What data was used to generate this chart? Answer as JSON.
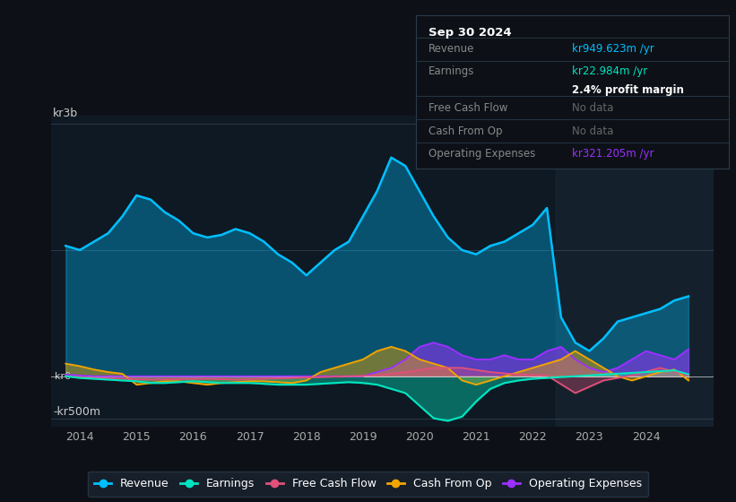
{
  "bg_color": "#0d1117",
  "plot_bg_color": "#0f1923",
  "grid_color": "#1e2d3d",
  "y_label_top": "kr3b",
  "y_label_mid": "kr0",
  "y_label_bot": "-kr500m",
  "x_ticks": [
    2014,
    2015,
    2016,
    2017,
    2018,
    2019,
    2020,
    2021,
    2022,
    2023,
    2024
  ],
  "ylim": [
    -600,
    3100
  ],
  "xlim": [
    2013.5,
    2025.2
  ],
  "colors": {
    "revenue": "#00bfff",
    "earnings": "#00e5c0",
    "free_cash_flow": "#e0507a",
    "cash_from_op": "#f0a500",
    "operating_expenses": "#9b30ff"
  },
  "legend_items": [
    "Revenue",
    "Earnings",
    "Free Cash Flow",
    "Cash From Op",
    "Operating Expenses"
  ],
  "info_box": {
    "date": "Sep 30 2024",
    "revenue_label": "Revenue",
    "revenue_value": "kr949.623m /yr",
    "earnings_label": "Earnings",
    "earnings_value": "kr22.984m /yr",
    "profit_margin": "2.4% profit margin",
    "free_cash_flow_label": "Free Cash Flow",
    "free_cash_flow_value": "No data",
    "cash_from_op_label": "Cash From Op",
    "cash_from_op_value": "No data",
    "op_expenses_label": "Operating Expenses",
    "op_expenses_value": "kr321.205m /yr"
  },
  "revenue": {
    "x": [
      2013.75,
      2014.0,
      2014.25,
      2014.5,
      2014.75,
      2015.0,
      2015.25,
      2015.5,
      2015.75,
      2016.0,
      2016.25,
      2016.5,
      2016.75,
      2017.0,
      2017.25,
      2017.5,
      2017.75,
      2018.0,
      2018.25,
      2018.5,
      2018.75,
      2019.0,
      2019.25,
      2019.5,
      2019.75,
      2020.0,
      2020.25,
      2020.5,
      2020.75,
      2021.0,
      2021.25,
      2021.5,
      2021.75,
      2022.0,
      2022.25,
      2022.5,
      2022.75,
      2023.0,
      2023.25,
      2023.5,
      2023.75,
      2024.0,
      2024.25,
      2024.5,
      2024.75
    ],
    "y": [
      1550,
      1500,
      1600,
      1700,
      1900,
      2150,
      2100,
      1950,
      1850,
      1700,
      1650,
      1680,
      1750,
      1700,
      1600,
      1450,
      1350,
      1200,
      1350,
      1500,
      1600,
      1900,
      2200,
      2600,
      2500,
      2200,
      1900,
      1650,
      1500,
      1450,
      1550,
      1600,
      1700,
      1800,
      2000,
      700,
      400,
      300,
      450,
      650,
      700,
      750,
      800,
      900,
      950
    ]
  },
  "earnings": {
    "x": [
      2013.75,
      2014.0,
      2014.25,
      2014.5,
      2014.75,
      2015.0,
      2015.25,
      2015.5,
      2015.75,
      2016.0,
      2016.25,
      2016.5,
      2016.75,
      2017.0,
      2017.25,
      2017.5,
      2017.75,
      2018.0,
      2018.25,
      2018.5,
      2018.75,
      2019.0,
      2019.25,
      2019.5,
      2019.75,
      2020.0,
      2020.25,
      2020.5,
      2020.75,
      2021.0,
      2021.25,
      2021.5,
      2021.75,
      2022.0,
      2022.25,
      2022.5,
      2022.75,
      2023.0,
      2023.25,
      2023.5,
      2023.75,
      2024.0,
      2024.25,
      2024.5,
      2024.75
    ],
    "y": [
      0,
      -20,
      -30,
      -40,
      -50,
      -60,
      -80,
      -80,
      -70,
      -60,
      -70,
      -80,
      -80,
      -80,
      -90,
      -100,
      -100,
      -100,
      -90,
      -80,
      -70,
      -80,
      -100,
      -150,
      -200,
      -350,
      -500,
      -530,
      -480,
      -300,
      -150,
      -80,
      -50,
      -30,
      -20,
      -10,
      0,
      10,
      20,
      30,
      40,
      50,
      60,
      70,
      23
    ]
  },
  "free_cash_flow": {
    "x": [
      2013.75,
      2014.25,
      2014.75,
      2015.25,
      2015.75,
      2016.25,
      2016.75,
      2017.25,
      2017.75,
      2018.25,
      2018.75,
      2019.25,
      2019.75,
      2020.25,
      2020.75,
      2021.25,
      2021.75,
      2022.25,
      2022.75,
      2023.25,
      2023.75,
      2024.25,
      2024.75
    ],
    "y": [
      0,
      -20,
      -30,
      -40,
      -35,
      -30,
      -40,
      -30,
      -20,
      -10,
      0,
      10,
      50,
      100,
      100,
      50,
      20,
      10,
      -200,
      -50,
      10,
      100,
      10
    ]
  },
  "cash_from_op": {
    "x": [
      2013.75,
      2014.0,
      2014.25,
      2014.5,
      2014.75,
      2015.0,
      2015.25,
      2015.5,
      2015.75,
      2016.0,
      2016.25,
      2016.5,
      2016.75,
      2017.0,
      2017.25,
      2017.5,
      2017.75,
      2018.0,
      2018.25,
      2018.5,
      2018.75,
      2019.0,
      2019.25,
      2019.5,
      2019.75,
      2020.0,
      2020.25,
      2020.5,
      2020.75,
      2021.0,
      2021.25,
      2021.5,
      2021.75,
      2022.0,
      2022.25,
      2022.5,
      2022.75,
      2023.0,
      2023.25,
      2023.5,
      2023.75,
      2024.0,
      2024.25,
      2024.5,
      2024.75
    ],
    "y": [
      150,
      120,
      80,
      50,
      30,
      -100,
      -80,
      -60,
      -60,
      -80,
      -100,
      -80,
      -70,
      -60,
      -60,
      -70,
      -80,
      -50,
      50,
      100,
      150,
      200,
      300,
      350,
      300,
      200,
      150,
      100,
      -50,
      -100,
      -50,
      0,
      50,
      100,
      150,
      200,
      300,
      200,
      100,
      0,
      -50,
      0,
      50,
      80,
      -50
    ]
  },
  "operating_expenses": {
    "x": [
      2013.75,
      2014.0,
      2014.25,
      2014.5,
      2014.75,
      2015.0,
      2015.25,
      2015.5,
      2015.75,
      2016.0,
      2016.25,
      2016.5,
      2016.75,
      2017.0,
      2017.25,
      2017.5,
      2017.75,
      2018.0,
      2018.25,
      2018.5,
      2018.75,
      2019.0,
      2019.25,
      2019.5,
      2019.75,
      2020.0,
      2020.25,
      2020.5,
      2020.75,
      2021.0,
      2021.25,
      2021.5,
      2021.75,
      2022.0,
      2022.25,
      2022.5,
      2022.75,
      2023.0,
      2023.25,
      2023.5,
      2023.75,
      2024.0,
      2024.25,
      2024.5,
      2024.75
    ],
    "y": [
      20,
      10,
      0,
      0,
      0,
      0,
      0,
      0,
      0,
      0,
      0,
      0,
      0,
      0,
      0,
      0,
      0,
      0,
      0,
      0,
      0,
      0,
      50,
      100,
      200,
      350,
      400,
      350,
      250,
      200,
      200,
      250,
      200,
      200,
      300,
      350,
      200,
      100,
      50,
      100,
      200,
      300,
      250,
      200,
      321
    ]
  }
}
